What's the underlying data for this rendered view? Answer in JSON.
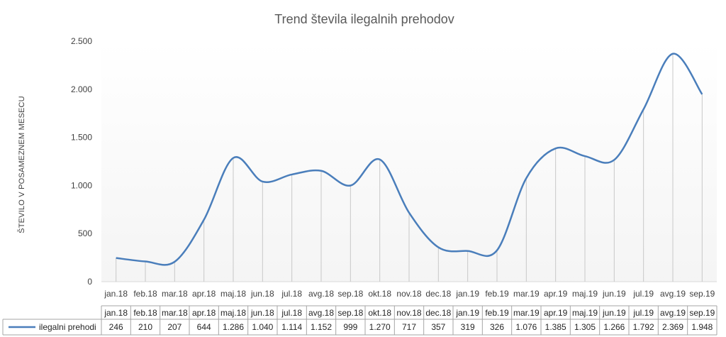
{
  "chart_data": {
    "type": "line",
    "title": "Trend števila ilegalnih prehodov",
    "ylabel": "ŠTEVILO V POSAMEZNEM MESECU",
    "xlabel": "",
    "ylim": [
      0,
      2500
    ],
    "yticks": [
      0,
      500,
      1000,
      1500,
      2000,
      2500
    ],
    "ytick_labels": [
      "0",
      "500",
      "1.000",
      "1.500",
      "2.000",
      "2.500"
    ],
    "categories": [
      "jan.18",
      "feb.18",
      "mar.18",
      "apr.18",
      "maj.18",
      "jun.18",
      "jul.18",
      "avg.18",
      "sep.18",
      "okt.18",
      "nov.18",
      "dec.18",
      "jan.19",
      "feb.19",
      "mar.19",
      "apr.19",
      "maj.19",
      "jun.19",
      "jul.19",
      "avg.19",
      "sep.19"
    ],
    "series": [
      {
        "name": "ilegalni prehodi",
        "color": "#4a7ebb",
        "values": [
          246,
          210,
          207,
          644,
          1286,
          1040,
          1114,
          1152,
          999,
          1270,
          717,
          357,
          319,
          326,
          1076,
          1385,
          1305,
          1266,
          1792,
          2369,
          1948
        ],
        "value_labels": [
          "246",
          "210",
          "207",
          "644",
          "1.286",
          "1.040",
          "1.114",
          "1.152",
          "999",
          "1.270",
          "717",
          "357",
          "319",
          "326",
          "1.076",
          "1.385",
          "1.305",
          "1.266",
          "1.792",
          "2.369",
          "1.948"
        ]
      }
    ],
    "data_table": true,
    "grid": false,
    "drop_lines": true
  }
}
